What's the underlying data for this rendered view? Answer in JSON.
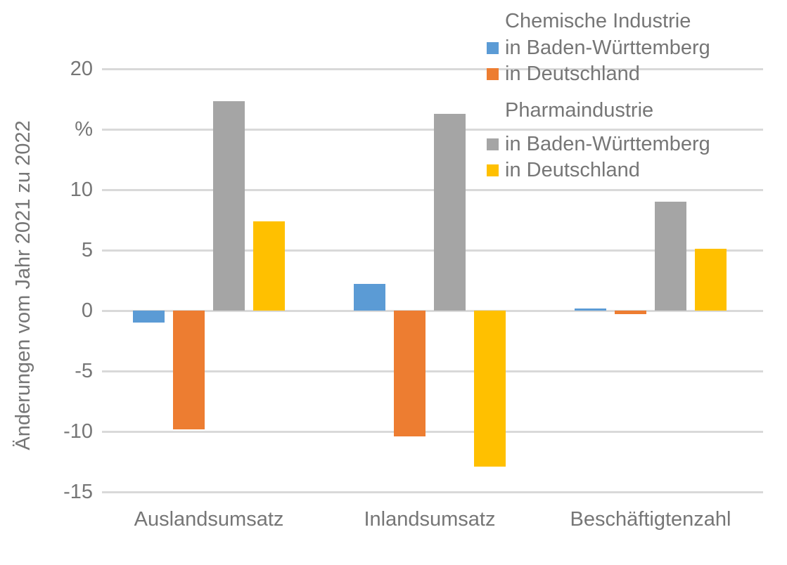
{
  "chart_data": {
    "type": "bar",
    "title": "",
    "ylabel": "Änderungen vom Jahr 2021 zu 2022",
    "unit": "%",
    "xlabel": "",
    "categories": [
      "Auslandsumsatz",
      "Inlandsumsatz",
      "Beschäftigtenzahl"
    ],
    "series": [
      {
        "group": "Chemische Industrie",
        "name": "in Baden-Württemberg",
        "color": "#5B9BD5",
        "values": [
          -1.0,
          2.2,
          0.2
        ]
      },
      {
        "group": "Chemische Industrie",
        "name": "in Deutschland",
        "color": "#ED7D31",
        "values": [
          -9.8,
          -10.4,
          -0.3
        ]
      },
      {
        "group": "Pharmaindustrie",
        "name": "in Baden-Württemberg",
        "color": "#A5A5A5",
        "values": [
          17.3,
          16.3,
          9.0
        ]
      },
      {
        "group": "Pharmaindustrie",
        "name": "in Deutschland",
        "color": "#FFC000",
        "values": [
          7.4,
          -12.9,
          5.1
        ]
      }
    ],
    "ylim": [
      -15,
      20
    ],
    "yticks": [
      20,
      15,
      10,
      5,
      0,
      -5,
      -10,
      -15
    ],
    "ytick_labels": [
      "20",
      "%",
      "10",
      "5",
      "0",
      "-5",
      "-10",
      "-15"
    ],
    "grid": true,
    "legend_position": "top-right",
    "legend_groups": [
      {
        "title": "Chemische Industrie",
        "entries": [
          {
            "label": "in Baden-Württemberg",
            "color": "#5B9BD5"
          },
          {
            "label": "in Deutschland",
            "color": "#ED7D31"
          }
        ]
      },
      {
        "title": "Pharmaindustrie",
        "entries": [
          {
            "label": "in Baden-Württemberg",
            "color": "#A5A5A5"
          },
          {
            "label": "in Deutschland",
            "color": "#FFC000"
          }
        ]
      }
    ],
    "colors": {
      "text": "#767676",
      "gridline": "#D9D9D9",
      "background": "#FFFFFF"
    }
  }
}
